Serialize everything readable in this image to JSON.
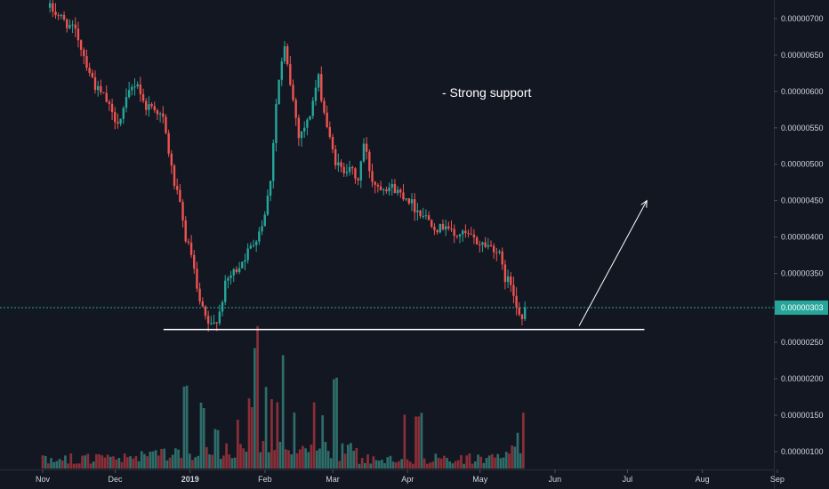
{
  "chart_data": {
    "type": "candlestick",
    "title": "",
    "annotation": "- Strong support",
    "y_ticks": [
      "0.00000700",
      "0.00000650",
      "0.00000600",
      "0.00000550",
      "0.00000500",
      "0.00000450",
      "0.00000400",
      "0.00000350",
      "0.00000250",
      "0.00000200",
      "0.00000150",
      "0.00000100"
    ],
    "y_tick_values": [
      700,
      650,
      600,
      550,
      500,
      450,
      400,
      350,
      250,
      200,
      150,
      100
    ],
    "ylim": [
      8.7e-07,
      7.19e-06
    ],
    "current_price": "0.00000303",
    "current_price_value": 303,
    "support_level": 273,
    "x_ticks": [
      "Nov",
      "Dec",
      "2019",
      "Feb",
      "Mar",
      "Apr",
      "May",
      "Jun",
      "Jul",
      "Aug",
      "Sep"
    ],
    "x_tick_days": [
      0,
      30,
      61,
      92,
      120,
      151,
      181,
      212,
      242,
      273,
      304
    ],
    "support_line_days": [
      50,
      249
    ],
    "arrow_from": {
      "day": 222,
      "price": 278
    },
    "arrow_to": {
      "day": 250,
      "price": 450
    },
    "price_path": [
      [
        -5,
        730
      ],
      [
        2,
        718
      ],
      [
        8,
        700
      ],
      [
        14,
        680
      ],
      [
        18,
        640
      ],
      [
        22,
        605
      ],
      [
        26,
        590
      ],
      [
        29,
        565
      ],
      [
        32,
        560
      ],
      [
        36,
        600
      ],
      [
        39,
        615
      ],
      [
        42,
        580
      ],
      [
        46,
        580
      ],
      [
        50,
        560
      ],
      [
        54,
        480
      ],
      [
        57,
        440
      ],
      [
        59,
        400
      ],
      [
        62,
        370
      ],
      [
        64,
        320
      ],
      [
        66,
        300
      ],
      [
        68,
        283
      ],
      [
        70,
        275
      ],
      [
        73,
        295
      ],
      [
        76,
        340
      ],
      [
        80,
        355
      ],
      [
        84,
        375
      ],
      [
        87,
        390
      ],
      [
        91,
        420
      ],
      [
        94,
        470
      ],
      [
        97,
        600
      ],
      [
        100,
        660
      ],
      [
        103,
        600
      ],
      [
        106,
        540
      ],
      [
        110,
        560
      ],
      [
        114,
        620
      ],
      [
        116,
        580
      ],
      [
        119,
        530
      ],
      [
        121,
        505
      ],
      [
        124,
        490
      ],
      [
        127,
        500
      ],
      [
        130,
        470
      ],
      [
        133,
        530
      ],
      [
        136,
        480
      ],
      [
        139,
        470
      ],
      [
        142,
        470
      ],
      [
        145,
        468
      ],
      [
        148,
        460
      ],
      [
        151,
        455
      ],
      [
        154,
        440
      ],
      [
        158,
        430
      ],
      [
        161,
        420
      ],
      [
        164,
        410
      ],
      [
        167,
        420
      ],
      [
        170,
        400
      ],
      [
        173,
        405
      ],
      [
        177,
        400
      ],
      [
        180,
        392
      ],
      [
        183,
        390
      ],
      [
        187,
        385
      ],
      [
        189,
        375
      ],
      [
        191,
        345
      ],
      [
        194,
        335
      ],
      [
        196,
        310
      ],
      [
        198,
        290
      ],
      [
        200,
        275
      ],
      [
        202,
        268
      ],
      [
        204,
        280
      ],
      [
        206,
        300
      ],
      [
        208,
        303
      ]
    ],
    "volume": {
      "data_points": 171,
      "spikes": [
        {
          "day": 59,
          "value": 85
        },
        {
          "day": 66,
          "value": 60
        },
        {
          "day": 72,
          "value": 40
        },
        {
          "day": 81,
          "value": 42
        },
        {
          "day": 86,
          "value": 65
        },
        {
          "day": 88,
          "value": 130
        },
        {
          "day": 89,
          "value": 150
        },
        {
          "day": 92,
          "value": 78
        },
        {
          "day": 95,
          "value": 75
        },
        {
          "day": 97,
          "value": 70
        },
        {
          "day": 99,
          "value": 115
        },
        {
          "day": 104,
          "value": 60
        },
        {
          "day": 112,
          "value": 65
        },
        {
          "day": 116,
          "value": 55
        },
        {
          "day": 121,
          "value": 95
        },
        {
          "day": 150,
          "value": 60
        },
        {
          "day": 155,
          "value": 58
        },
        {
          "day": 157,
          "value": 62
        },
        {
          "day": 197,
          "value": 38
        },
        {
          "day": 199,
          "value": 55
        },
        {
          "day": 201,
          "value": 58
        },
        {
          "day": 203,
          "value": 40
        }
      ]
    },
    "colors": {
      "background": "#131722",
      "up": "#26a69a",
      "down": "#ef5350",
      "vol_up": "#2e6d69",
      "vol_down": "#8a2f38",
      "price_line": "#26a69a",
      "price_tag_bg": "#26a69a",
      "text": "#d1d4dc",
      "axis_line": "#2a2e39",
      "support_line": "#ffffff"
    }
  }
}
